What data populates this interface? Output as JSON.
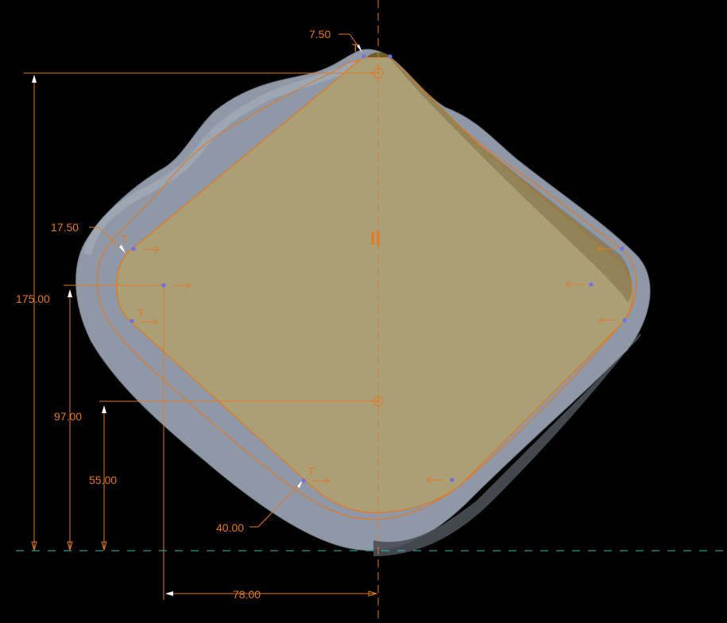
{
  "viewport": {
    "background": "#000000",
    "colors": {
      "dimension": "#e07a25",
      "profile_fill": "#ab9f78",
      "mesh": "#8e98a6",
      "ground_line": "#3bbfb0",
      "vertex": "#6f6fe8"
    }
  },
  "dimensions": {
    "top_tip": "7.50",
    "left_radius": "17.50",
    "overall_height": "175.00",
    "left_height": "97.00",
    "center_height": "55.00",
    "bottom_radius": "40.00",
    "half_width": "78.00"
  },
  "markers": {
    "tangent_1": "T",
    "tangent_2": "T",
    "tangent_3": "T",
    "tangent_4": "T",
    "symmetry": "II"
  },
  "icons": {
    "center_point": "circle-target-icon",
    "vertex": "dot-icon",
    "dimension_arrow": "arrowhead-icon"
  }
}
